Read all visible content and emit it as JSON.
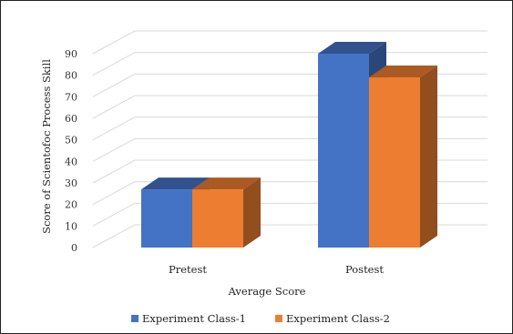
{
  "chart_data": {
    "type": "bar",
    "title": "",
    "xlabel": "Average Score",
    "ylabel": "Score of Scientofoc Process Skill",
    "categories": [
      "Pretest",
      "Postest"
    ],
    "ylim": [
      0,
      90
    ],
    "yticks": [
      0,
      10,
      20,
      30,
      40,
      50,
      60,
      70,
      80,
      90
    ],
    "grid": true,
    "legend_position": "bottom",
    "style": "3d-clustered-column",
    "series": [
      {
        "name": "Experiment Class-1",
        "values": [
          27,
          90
        ],
        "color": "#4472C4"
      },
      {
        "name": "Experiment Class-2",
        "values": [
          27,
          79
        ],
        "color": "#ED7D31"
      }
    ]
  }
}
